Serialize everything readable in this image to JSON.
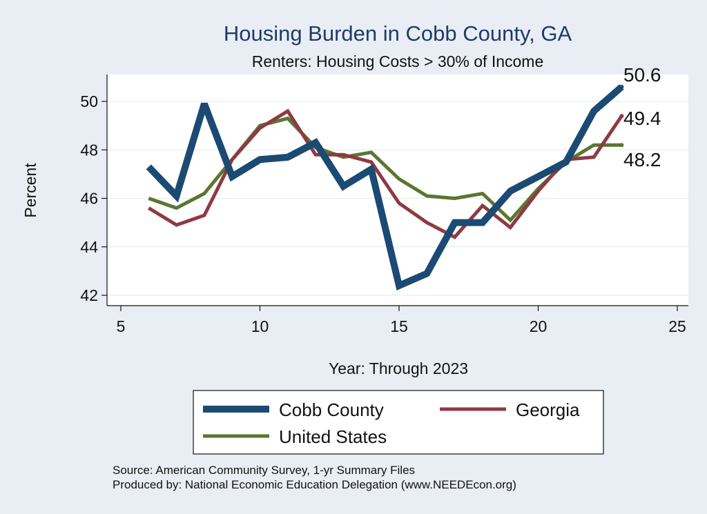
{
  "chart_data": {
    "type": "line",
    "title": "Housing Burden in Cobb County, GA",
    "subtitle": "Renters: Housing Costs > 30% of Income",
    "xlabel": "Year: Through 2023",
    "ylabel": "Percent",
    "xlim": [
      5,
      25
    ],
    "ylim": [
      41.5,
      51
    ],
    "xticks": [
      5,
      10,
      15,
      20,
      25
    ],
    "yticks": [
      42,
      44,
      46,
      48,
      50
    ],
    "x": [
      6,
      7,
      8,
      9,
      10,
      11,
      12,
      13,
      14,
      15,
      16,
      17,
      18,
      19,
      20,
      21,
      22,
      23
    ],
    "series": [
      {
        "name": "Cobb County",
        "color": "#1b4a73",
        "values": [
          47.3,
          46.1,
          49.9,
          46.9,
          47.6,
          47.7,
          48.3,
          46.5,
          47.2,
          42.4,
          42.9,
          45.0,
          45.0,
          46.3,
          46.9,
          47.5,
          49.6,
          50.6
        ],
        "end_label": "50.6"
      },
      {
        "name": "Georgia",
        "color": "#8e3a43",
        "values": [
          45.6,
          44.9,
          45.3,
          47.6,
          48.9,
          49.6,
          47.8,
          47.8,
          47.5,
          45.8,
          45.0,
          44.4,
          45.7,
          44.8,
          46.3,
          47.6,
          47.7,
          49.4
        ],
        "end_label": "49.4"
      },
      {
        "name": "United States",
        "color": "#5a7630",
        "values": [
          46.0,
          45.6,
          46.2,
          47.6,
          49.0,
          49.3,
          48.1,
          47.7,
          47.9,
          46.8,
          46.1,
          46.0,
          46.2,
          45.1,
          46.4,
          47.5,
          48.2,
          48.2
        ],
        "end_label": "48.2"
      }
    ],
    "legend": {
      "position": "bottom",
      "items": [
        "Cobb County",
        "Georgia",
        "United States"
      ]
    },
    "notes": [
      "Source: American Community Survey, 1-yr Summary Files",
      "Produced by: National Economic Education Delegation (www.NEEDEcon.org)"
    ]
  }
}
